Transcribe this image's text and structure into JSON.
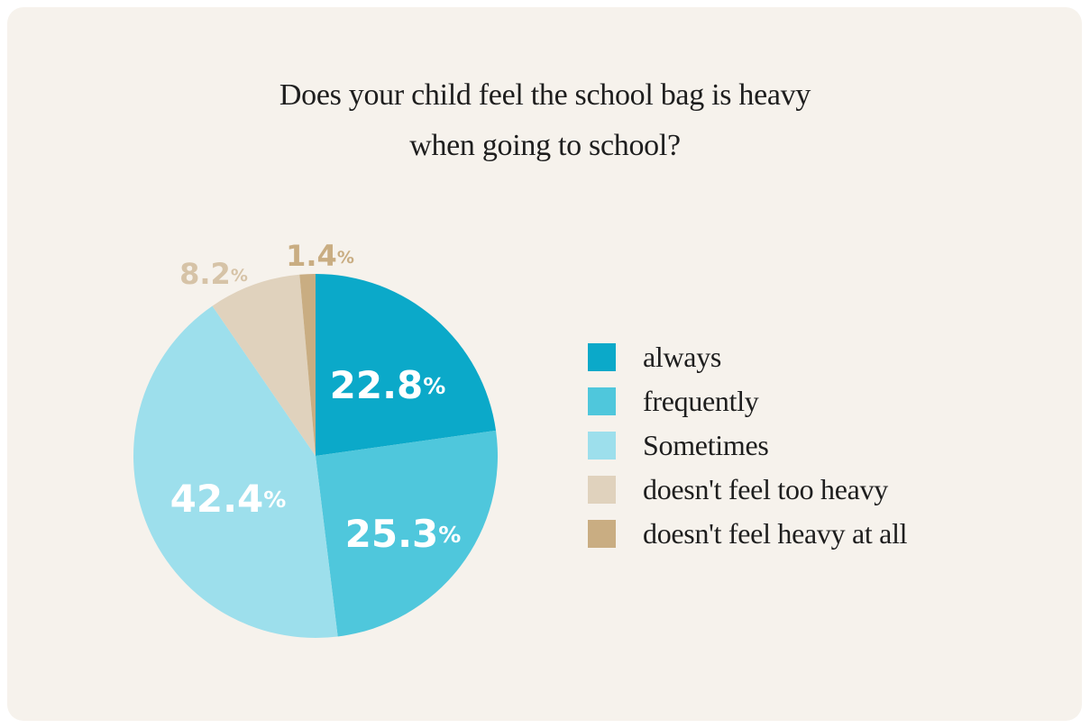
{
  "chart_data": {
    "type": "pie",
    "title": "Does your child feel the school bag is heavy when going to school?",
    "title_lines": [
      "Does your child feel the school bag is heavy",
      "when going to school?"
    ],
    "unit": "%",
    "legend_position": "right",
    "slices": [
      {
        "label": "always",
        "value": 22.8,
        "display": "22.8",
        "color": "#0ba9c9",
        "label_color": "#ffffff"
      },
      {
        "label": "frequently",
        "value": 25.3,
        "display": "25.3",
        "color": "#4fc7dc",
        "label_color": "#ffffff"
      },
      {
        "label": "Sometimes",
        "value": 42.4,
        "display": "42.4",
        "color": "#9ddfec",
        "label_color": "#ffffff"
      },
      {
        "label": "doesn't feel too heavy",
        "value": 8.2,
        "display": "8.2",
        "color": "#e0d2bd",
        "label_color": "#d6c3a7"
      },
      {
        "label": "doesn't feel heavy at all",
        "value": 1.4,
        "display": "1.4",
        "color": "#c9ad82",
        "label_color": "#c9ad82"
      }
    ]
  }
}
